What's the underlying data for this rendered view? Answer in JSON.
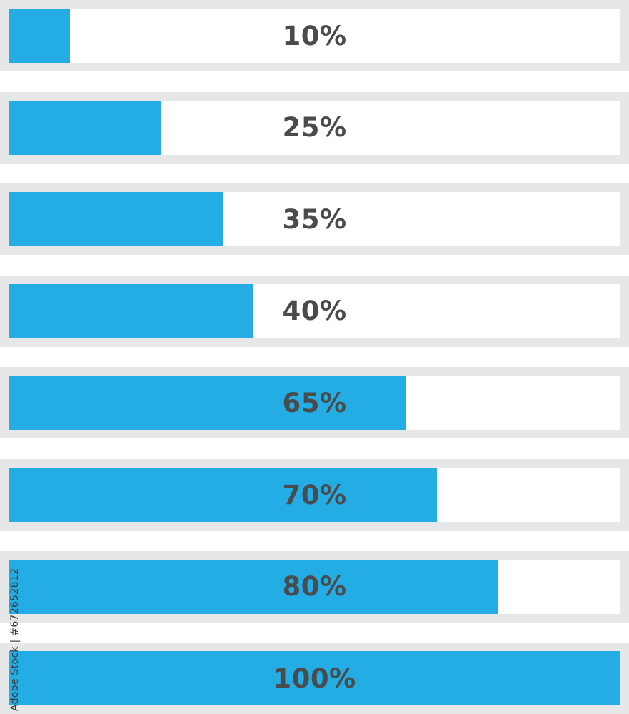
{
  "progress_bars": [
    {
      "label": "10%",
      "value": 0.1
    },
    {
      "label": "25%",
      "value": 0.25
    },
    {
      "label": "35%",
      "value": 0.35
    },
    {
      "label": "40%",
      "value": 0.4
    },
    {
      "label": "65%",
      "value": 0.65
    },
    {
      "label": "70%",
      "value": 0.7
    },
    {
      "label": "80%",
      "value": 0.8
    },
    {
      "label": "100%",
      "value": 1.0
    }
  ],
  "colors": {
    "fill": "#23ade4",
    "track": "#ffffff",
    "frame": "#e6e7e9",
    "label": "#4a4b4d"
  },
  "caption": "Adobe Stock | #672652812"
}
